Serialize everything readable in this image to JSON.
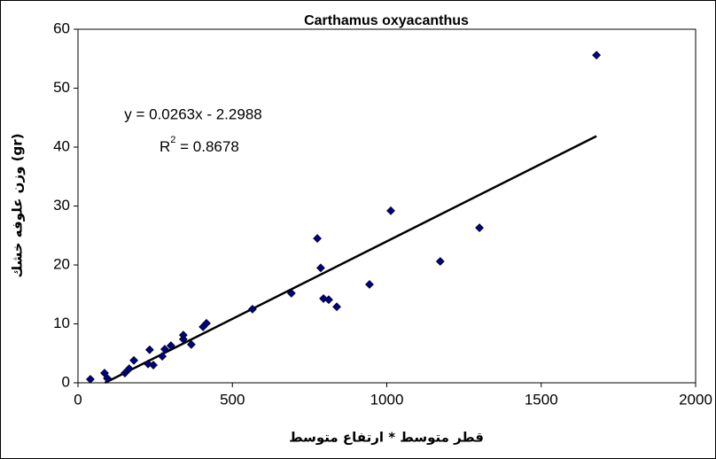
{
  "chart_data": {
    "type": "scatter",
    "title": "Carthamus oxyacanthus",
    "x_label": "قطر متوسط * ارتفاع متوسط",
    "y_label": "وزن علوفه خشك (gr)",
    "xlim": [
      0,
      2000
    ],
    "xticks": [
      0,
      500,
      1000,
      1500,
      2000
    ],
    "ylim": [
      0,
      60
    ],
    "yticks": [
      0,
      10,
      20,
      30,
      40,
      50,
      60
    ],
    "color": "#000080",
    "series": [
      {
        "x": [
          40,
          86,
          95,
          152,
          166,
          181,
          227,
          232,
          244,
          273,
          281,
          301,
          341,
          341,
          367,
          405,
          416,
          565,
          691,
          775,
          786,
          795,
          812,
          838,
          944,
          1013,
          1173,
          1300,
          1679
        ],
        "values": [
          0.6,
          1.65,
          0.75,
          1.65,
          2.4,
          3.8,
          3.2,
          5.6,
          3.0,
          4.5,
          5.7,
          6.3,
          7.4,
          8.1,
          6.5,
          9.5,
          10.1,
          12.5,
          15.2,
          24.5,
          19.5,
          14.3,
          14.1,
          12.9,
          16.7,
          29.2,
          20.6,
          26.3,
          55.6
        ]
      }
    ],
    "trendline": {
      "slope": 0.0263,
      "intercept": -2.2988,
      "color": "#000000"
    },
    "equation_label": "y = 0.0263x - 2.2988",
    "r_squared_label": {
      "base": "R",
      "sup": "2",
      "rest": " = 0.8678"
    }
  }
}
